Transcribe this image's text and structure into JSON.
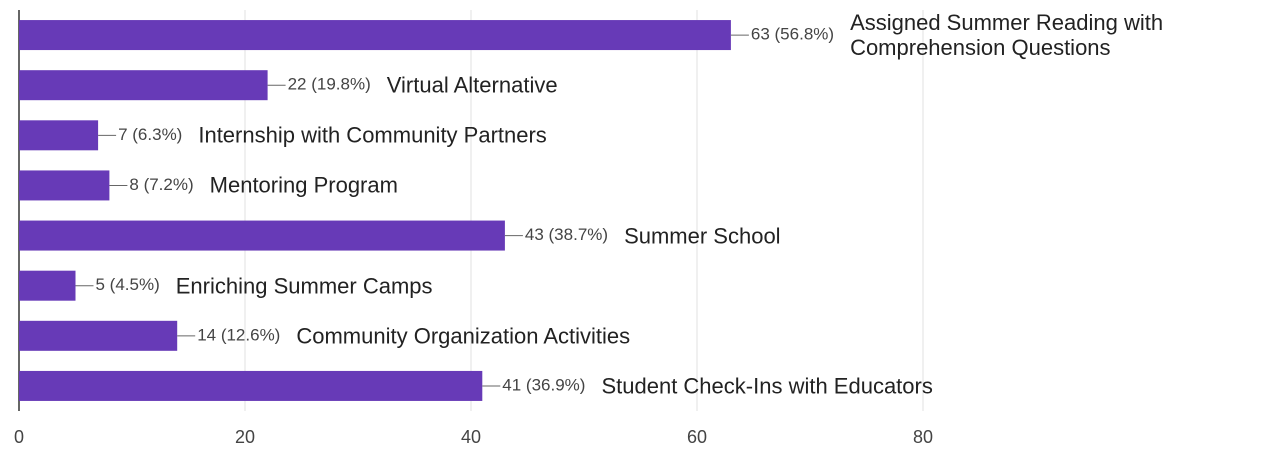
{
  "chart_data": {
    "type": "bar",
    "orientation": "horizontal",
    "categories": [
      "Assigned Summer Reading with Comprehension Questions",
      "Virtual Alternative",
      "Internship with Community Partners",
      "Mentoring Program",
      "Summer School",
      "Enriching Summer Camps",
      "Community Organization Activities",
      "Student Check-Ins with Educators"
    ],
    "values": [
      63,
      22,
      7,
      8,
      43,
      5,
      14,
      41
    ],
    "value_labels": [
      "63 (56.8%)",
      "22 (19.8%)",
      "7 (6.3%)",
      "8 (7.2%)",
      "43 (38.7%)",
      "5 (4.5%)",
      "14 (12.6%)",
      "41 (36.9%)"
    ],
    "color": "#673ab7",
    "xlim": [
      0,
      80
    ],
    "xticks": [
      0,
      20,
      40,
      60,
      80
    ],
    "grid": true
  }
}
